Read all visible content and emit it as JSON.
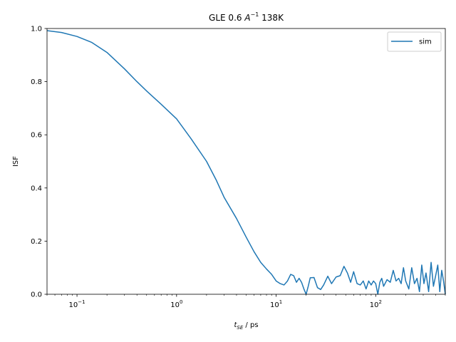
{
  "chart_data": {
    "type": "line",
    "title_parts": [
      "GLE 0.6 ",
      "A",
      "−1",
      " 138K"
    ],
    "xlabel_parts": [
      "t",
      "SE",
      " / ps"
    ],
    "ylabel": "ISF",
    "xscale": "log",
    "xlim": [
      0.05,
      500
    ],
    "ylim": [
      0,
      1
    ],
    "x_ticks": [
      {
        "value": 0.1,
        "base": "10",
        "exp": "−1"
      },
      {
        "value": 1,
        "base": "10",
        "exp": "0"
      },
      {
        "value": 10,
        "base": "10",
        "exp": "1"
      },
      {
        "value": 100,
        "base": "10",
        "exp": "2"
      }
    ],
    "y_ticks": [
      "0.0",
      "0.2",
      "0.4",
      "0.6",
      "0.8",
      "1.0"
    ],
    "legend_position": "upper right",
    "grid": false,
    "series": [
      {
        "name": "sim",
        "color": "#1f77b4",
        "x": [
          0.05,
          0.07,
          0.1,
          0.14,
          0.2,
          0.3,
          0.4,
          0.5,
          0.7,
          1.0,
          1.4,
          2.0,
          2.5,
          3.0,
          4.0,
          5.0,
          6.0,
          7.0,
          8.0,
          9.0,
          10.0,
          11.0,
          12.0,
          13.0,
          14.0,
          15.0,
          16.0,
          17.0,
          18.0,
          19.0,
          20.0,
          21.0,
          22.0,
          24.0,
          26.0,
          28.0,
          30.0,
          33.0,
          36.0,
          40.0,
          44.0,
          48.0,
          52.0,
          56.0,
          60.0,
          65.0,
          70.0,
          75.0,
          80.0,
          85.0,
          90.0,
          95.0,
          100.0,
          105.0,
          110.0,
          115.0,
          120.0,
          130.0,
          140.0,
          150.0,
          160.0,
          170.0,
          180.0,
          190.0,
          200.0,
          215.0,
          230.0,
          245.0,
          260.0,
          275.0,
          290.0,
          305.0,
          320.0,
          340.0,
          360.0,
          380.0,
          400.0,
          420.0,
          440.0,
          460.0,
          480.0,
          500.0
        ],
        "y": [
          0.992,
          0.985,
          0.97,
          0.948,
          0.91,
          0.848,
          0.8,
          0.765,
          0.715,
          0.66,
          0.585,
          0.5,
          0.43,
          0.365,
          0.285,
          0.215,
          0.16,
          0.12,
          0.095,
          0.075,
          0.05,
          0.04,
          0.035,
          0.05,
          0.075,
          0.07,
          0.045,
          0.06,
          0.045,
          0.02,
          0.0,
          0.03,
          0.062,
          0.063,
          0.025,
          0.018,
          0.035,
          0.068,
          0.04,
          0.065,
          0.07,
          0.105,
          0.08,
          0.045,
          0.085,
          0.04,
          0.035,
          0.05,
          0.02,
          0.05,
          0.035,
          0.05,
          0.04,
          0.0,
          0.045,
          0.06,
          0.03,
          0.055,
          0.045,
          0.09,
          0.05,
          0.06,
          0.04,
          0.1,
          0.05,
          0.02,
          0.1,
          0.04,
          0.06,
          0.01,
          0.11,
          0.04,
          0.08,
          0.01,
          0.12,
          0.03,
          0.07,
          0.11,
          0.01,
          0.09,
          0.05,
          0.0
        ]
      }
    ]
  }
}
